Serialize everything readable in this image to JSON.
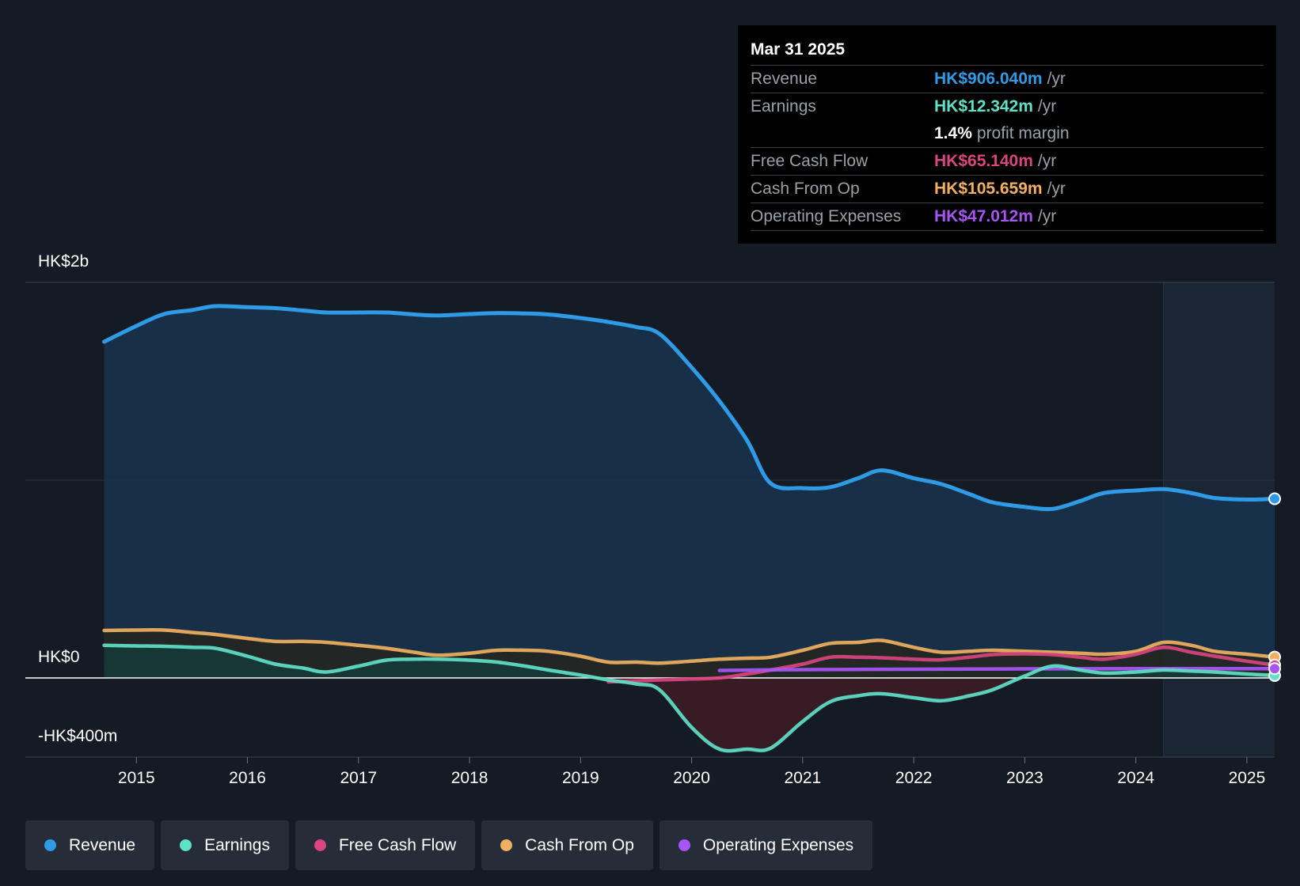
{
  "chart_data": {
    "type": "area",
    "y_axis": {
      "unit": "HK$m",
      "ylim": [
        -400,
        2000
      ],
      "tick_labels": [
        "HK$2b",
        "HK$0",
        "-HK$400m"
      ]
    },
    "x_axis": {
      "tick_labels": [
        "2015",
        "2016",
        "2017",
        "2018",
        "2019",
        "2020",
        "2021",
        "2022",
        "2023",
        "2024",
        "2025"
      ],
      "xlim": [
        2014.0,
        2025.25
      ]
    },
    "series": [
      {
        "name": "Revenue",
        "color": "#2f9be6",
        "x": [
          2014.71,
          2015.0,
          2015.25,
          2015.5,
          2015.71,
          2016.0,
          2016.25,
          2016.5,
          2016.71,
          2017.0,
          2017.25,
          2017.5,
          2017.71,
          2018.0,
          2018.25,
          2018.5,
          2018.71,
          2019.0,
          2019.25,
          2019.5,
          2019.71,
          2020.0,
          2020.25,
          2020.5,
          2020.71,
          2021.0,
          2021.25,
          2021.5,
          2021.71,
          2022.0,
          2022.25,
          2022.5,
          2022.71,
          2023.0,
          2023.25,
          2023.5,
          2023.71,
          2024.0,
          2024.25,
          2024.5,
          2024.71,
          2025.0,
          2025.25
        ],
        "values": [
          1700,
          1780,
          1840,
          1860,
          1880,
          1875,
          1870,
          1858,
          1848,
          1848,
          1848,
          1838,
          1833,
          1840,
          1845,
          1843,
          1838,
          1820,
          1800,
          1775,
          1740,
          1570,
          1400,
          1200,
          985,
          960,
          965,
          1010,
          1050,
          1010,
          980,
          930,
          888,
          865,
          855,
          895,
          935,
          948,
          955,
          935,
          910,
          902,
          906
        ],
        "fill": "#17344f"
      },
      {
        "name": "Earnings",
        "color": "#5fe0c8",
        "x": [
          2014.71,
          2015.0,
          2015.25,
          2015.5,
          2015.71,
          2016.0,
          2016.25,
          2016.5,
          2016.71,
          2017.0,
          2017.25,
          2017.5,
          2017.71,
          2018.0,
          2018.25,
          2018.5,
          2018.71,
          2019.0,
          2019.25,
          2019.5,
          2019.71,
          2020.0,
          2020.25,
          2020.5,
          2020.71,
          2021.0,
          2021.25,
          2021.5,
          2021.71,
          2022.0,
          2022.25,
          2022.5,
          2022.71,
          2023.0,
          2023.25,
          2023.5,
          2023.71,
          2024.0,
          2024.25,
          2024.5,
          2024.71,
          2025.0,
          2025.25
        ],
        "values": [
          165,
          162,
          160,
          155,
          150,
          110,
          70,
          50,
          30,
          60,
          90,
          95,
          95,
          90,
          80,
          60,
          40,
          15,
          -10,
          -30,
          -60,
          -250,
          -360,
          -360,
          -355,
          -220,
          -120,
          -90,
          -80,
          -100,
          -115,
          -90,
          -60,
          10,
          60,
          40,
          25,
          30,
          40,
          35,
          30,
          20,
          12.342
        ],
        "fill": "#163a36",
        "neg_fill": "#3a1c26"
      },
      {
        "name": "Free Cash Flow",
        "color": "#d9457f",
        "x": [
          2019.25,
          2019.5,
          2019.71,
          2020.0,
          2020.25,
          2020.5,
          2020.71,
          2021.0,
          2021.25,
          2021.5,
          2021.71,
          2022.0,
          2022.25,
          2022.5,
          2022.71,
          2023.0,
          2023.25,
          2023.5,
          2023.71,
          2024.0,
          2024.25,
          2024.5,
          2024.71,
          2025.0,
          2025.25
        ],
        "values": [
          -20,
          -15,
          -10,
          -5,
          0,
          20,
          40,
          70,
          105,
          105,
          102,
          95,
          92,
          105,
          118,
          122,
          118,
          105,
          95,
          120,
          155,
          130,
          110,
          85,
          65.14
        ]
      },
      {
        "name": "Cash From Op",
        "color": "#f0b060",
        "x": [
          2014.71,
          2015.0,
          2015.25,
          2015.5,
          2015.71,
          2016.0,
          2016.25,
          2016.5,
          2016.71,
          2017.0,
          2017.25,
          2017.5,
          2017.71,
          2018.0,
          2018.25,
          2018.5,
          2018.71,
          2019.0,
          2019.25,
          2019.5,
          2019.71,
          2020.0,
          2020.25,
          2020.5,
          2020.71,
          2021.0,
          2021.25,
          2021.5,
          2021.71,
          2022.0,
          2022.25,
          2022.5,
          2022.71,
          2023.0,
          2023.25,
          2023.5,
          2023.71,
          2024.0,
          2024.25,
          2024.5,
          2024.71,
          2025.0,
          2025.25
        ],
        "values": [
          240,
          242,
          242,
          230,
          220,
          200,
          185,
          185,
          180,
          165,
          150,
          130,
          115,
          125,
          140,
          140,
          135,
          110,
          80,
          80,
          75,
          85,
          95,
          100,
          105,
          140,
          175,
          180,
          190,
          155,
          130,
          135,
          140,
          135,
          130,
          125,
          120,
          135,
          180,
          165,
          135,
          120,
          105.659
        ],
        "fill": "#26261e"
      },
      {
        "name": "Operating Expenses",
        "color": "#a855f7",
        "x": [
          2020.25,
          2021.0,
          2022.0,
          2023.0,
          2024.0,
          2025.25
        ],
        "values": [
          38,
          42,
          44,
          46,
          47,
          47.012
        ]
      }
    ],
    "forecast_start": 2024.25
  },
  "tooltip": {
    "date": "Mar 31 2025",
    "rows": [
      {
        "label": "Revenue",
        "value": "HK$906.040m",
        "unit": "/yr",
        "color": "#2f9be6"
      },
      {
        "label": "Earnings",
        "value": "HK$12.342m",
        "unit": "/yr",
        "color": "#5fe0c8"
      },
      {
        "margin_value": "1.4%",
        "margin_text": "profit margin"
      },
      {
        "label": "Free Cash Flow",
        "value": "HK$65.140m",
        "unit": "/yr",
        "color": "#d9457f"
      },
      {
        "label": "Cash From Op",
        "value": "HK$105.659m",
        "unit": "/yr",
        "color": "#f0b060"
      },
      {
        "label": "Operating Expenses",
        "value": "HK$47.012m",
        "unit": "/yr",
        "color": "#a855f7"
      }
    ]
  },
  "legend": [
    {
      "label": "Revenue",
      "color": "#2f9be6"
    },
    {
      "label": "Earnings",
      "color": "#5fe0c8"
    },
    {
      "label": "Free Cash Flow",
      "color": "#d9457f"
    },
    {
      "label": "Cash From Op",
      "color": "#f0b060"
    },
    {
      "label": "Operating Expenses",
      "color": "#a855f7"
    }
  ]
}
